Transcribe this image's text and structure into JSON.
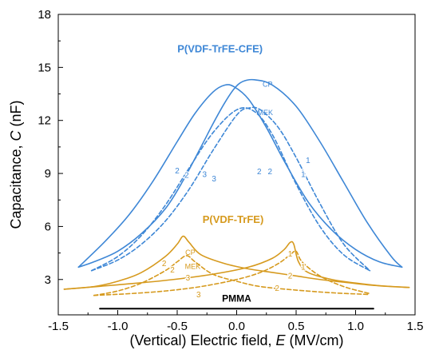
{
  "chart_data": {
    "type": "line",
    "title": "",
    "xlabel_prefix": "(Vertical) Electric field, ",
    "xlabel_symbol": "E",
    "xlabel_unit": " (MV/cm)",
    "ylabel_prefix": "Capacitance, ",
    "ylabel_symbol": "C",
    "ylabel_unit": " (nF)",
    "xlim": [
      -1.5,
      1.5
    ],
    "ylim": [
      1,
      18
    ],
    "xticks": [
      -1.5,
      -1.0,
      -0.5,
      0.0,
      0.5,
      1.0,
      1.5
    ],
    "xtick_labels": [
      "-1.5",
      "-1.0",
      "-0.5",
      "0.0",
      "0.5",
      "1.0",
      "1.5"
    ],
    "yticks": [
      3,
      6,
      9,
      12,
      15,
      18
    ],
    "ytick_labels": [
      "3",
      "6",
      "9",
      "12",
      "15",
      "18"
    ],
    "grid": false,
    "colors": {
      "terpolymer": "#3e87d6",
      "copolymer": "#d69a1e",
      "pmma": "#000000"
    },
    "series": [
      {
        "key": "cfe-cp-up",
        "group": "terpolymer",
        "style": "solid",
        "x": [
          -1.33,
          -1.2,
          -1.0,
          -0.8,
          -0.6,
          -0.45,
          -0.3,
          -0.2,
          -0.1,
          -0.02,
          0.05,
          0.15,
          0.3,
          0.5,
          0.7,
          0.9,
          1.1,
          1.3,
          1.39
        ],
        "y": [
          3.7,
          4.0,
          4.6,
          5.6,
          7.0,
          8.6,
          10.5,
          11.8,
          13.0,
          13.8,
          14.2,
          14.3,
          14.0,
          12.8,
          10.8,
          8.5,
          6.2,
          4.3,
          3.7
        ]
      },
      {
        "key": "cfe-cp-down",
        "group": "terpolymer",
        "style": "solid",
        "x": [
          -1.33,
          -1.1,
          -0.9,
          -0.7,
          -0.5,
          -0.35,
          -0.2,
          -0.1,
          -0.02,
          0.1,
          0.25,
          0.4,
          0.6,
          0.8,
          1.0,
          1.2,
          1.39
        ],
        "y": [
          3.7,
          5.2,
          6.7,
          8.6,
          10.8,
          12.4,
          13.6,
          14.0,
          13.9,
          13.2,
          11.6,
          9.7,
          7.4,
          5.8,
          4.7,
          4.0,
          3.7
        ]
      },
      {
        "key": "cfe-mek-up",
        "group": "terpolymer",
        "style": "dashed",
        "x": [
          -1.22,
          -1.0,
          -0.8,
          -0.6,
          -0.4,
          -0.2,
          0.0,
          0.1,
          0.2,
          0.35,
          0.5,
          0.7,
          0.9,
          1.12
        ],
        "y": [
          3.5,
          4.1,
          5.0,
          6.3,
          8.1,
          10.3,
          12.3,
          12.7,
          12.6,
          11.6,
          9.9,
          7.3,
          5.0,
          3.5
        ]
      },
      {
        "key": "cfe-mek-down",
        "group": "terpolymer",
        "style": "dashed",
        "x": [
          -1.22,
          -1.0,
          -0.8,
          -0.6,
          -0.4,
          -0.2,
          0.0,
          0.15,
          0.3,
          0.5,
          0.7,
          0.9,
          1.12
        ],
        "y": [
          3.5,
          4.3,
          5.5,
          7.2,
          9.3,
          11.3,
          12.6,
          12.5,
          11.2,
          8.4,
          6.0,
          4.4,
          3.5
        ]
      },
      {
        "key": "trfe-cp-up",
        "group": "copolymer",
        "style": "solid",
        "x": [
          -1.45,
          -1.2,
          -1.0,
          -0.8,
          -0.6,
          -0.5,
          -0.45,
          -0.4,
          -0.3,
          -0.1,
          0.1,
          0.3,
          0.5,
          0.7,
          0.9,
          1.1,
          1.3,
          1.45
        ],
        "y": [
          2.45,
          2.6,
          2.9,
          3.4,
          4.3,
          5.0,
          5.45,
          5.1,
          4.4,
          3.9,
          3.6,
          3.4,
          3.2,
          3.0,
          2.85,
          2.7,
          2.6,
          2.55
        ]
      },
      {
        "key": "trfe-cp-down",
        "group": "copolymer",
        "style": "solid",
        "x": [
          -1.45,
          -1.0,
          -0.6,
          -0.2,
          0.1,
          0.3,
          0.4,
          0.45,
          0.48,
          0.52,
          0.6,
          0.8,
          1.0,
          1.2,
          1.45
        ],
        "y": [
          2.45,
          2.7,
          2.95,
          3.3,
          3.7,
          4.2,
          4.7,
          5.1,
          5.0,
          4.0,
          3.4,
          3.0,
          2.8,
          2.65,
          2.55
        ]
      },
      {
        "key": "trfe-mek-up",
        "group": "copolymer",
        "style": "dashed",
        "x": [
          -1.2,
          -1.0,
          -0.8,
          -0.6,
          -0.5,
          -0.42,
          -0.35,
          -0.2,
          0.0,
          0.2,
          0.5,
          0.8,
          1.12
        ],
        "y": [
          2.1,
          2.35,
          2.8,
          3.5,
          4.0,
          4.35,
          4.0,
          3.3,
          2.9,
          2.6,
          2.4,
          2.25,
          2.15
        ]
      },
      {
        "key": "trfe-mek-down",
        "group": "copolymer",
        "style": "dashed",
        "x": [
          -1.2,
          -0.9,
          -0.6,
          -0.3,
          0.0,
          0.2,
          0.35,
          0.45,
          0.5,
          0.55,
          0.7,
          0.9,
          1.12
        ],
        "y": [
          2.1,
          2.2,
          2.35,
          2.6,
          3.0,
          3.4,
          3.9,
          4.4,
          4.6,
          4.0,
          3.2,
          2.6,
          2.2
        ]
      },
      {
        "key": "pmma",
        "group": "pmma",
        "style": "solid",
        "x": [
          -1.15,
          1.15
        ],
        "y": [
          1.35,
          1.35
        ]
      }
    ],
    "annotations": {
      "series_labels": [
        {
          "text": "P(VDF-TrFE-CFE)",
          "x": -0.14,
          "y": 15.85,
          "group": "terpolymer",
          "bold": true,
          "size": 13
        },
        {
          "text": "P(VDF-TrFE)",
          "x": -0.03,
          "y": 6.2,
          "group": "copolymer",
          "bold": true,
          "size": 13
        },
        {
          "text": "PMMA",
          "x": 0.0,
          "y": 1.75,
          "group": "pmma",
          "bold": true,
          "size": 12
        }
      ],
      "curve_labels": [
        {
          "text": "CP",
          "x": 0.26,
          "y": 13.9,
          "group": "terpolymer"
        },
        {
          "text": "MEK",
          "x": 0.24,
          "y": 12.3,
          "group": "terpolymer"
        },
        {
          "text": "CP",
          "x": -0.39,
          "y": 4.4,
          "group": "copolymer"
        },
        {
          "text": "MEK",
          "x": -0.37,
          "y": 3.6,
          "group": "copolymer"
        }
      ],
      "cycle_numbers": [
        {
          "text": "2",
          "x": -0.5,
          "y": 9.0,
          "group": "terpolymer"
        },
        {
          "text": "2",
          "x": -0.42,
          "y": 8.75,
          "group": "terpolymer"
        },
        {
          "text": "3",
          "x": -0.27,
          "y": 8.8,
          "group": "terpolymer"
        },
        {
          "text": "3",
          "x": -0.19,
          "y": 8.55,
          "group": "terpolymer"
        },
        {
          "text": "2",
          "x": 0.19,
          "y": 8.95,
          "group": "terpolymer"
        },
        {
          "text": "2",
          "x": 0.28,
          "y": 8.95,
          "group": "terpolymer"
        },
        {
          "text": "1",
          "x": 0.6,
          "y": 9.6,
          "group": "terpolymer"
        },
        {
          "text": "1",
          "x": 0.56,
          "y": 8.8,
          "group": "terpolymer"
        },
        {
          "text": "2",
          "x": -0.61,
          "y": 3.75,
          "group": "copolymer"
        },
        {
          "text": "2",
          "x": -0.54,
          "y": 3.4,
          "group": "copolymer"
        },
        {
          "text": "3",
          "x": -0.41,
          "y": 2.95,
          "group": "copolymer"
        },
        {
          "text": "3",
          "x": -0.32,
          "y": 2.0,
          "group": "copolymer"
        },
        {
          "text": "1",
          "x": 0.45,
          "y": 4.3,
          "group": "copolymer"
        },
        {
          "text": "1",
          "x": 0.56,
          "y": 3.55,
          "group": "copolymer"
        },
        {
          "text": "2",
          "x": 0.45,
          "y": 3.05,
          "group": "copolymer"
        },
        {
          "text": "2",
          "x": 0.34,
          "y": 2.35,
          "group": "copolymer"
        }
      ]
    }
  }
}
